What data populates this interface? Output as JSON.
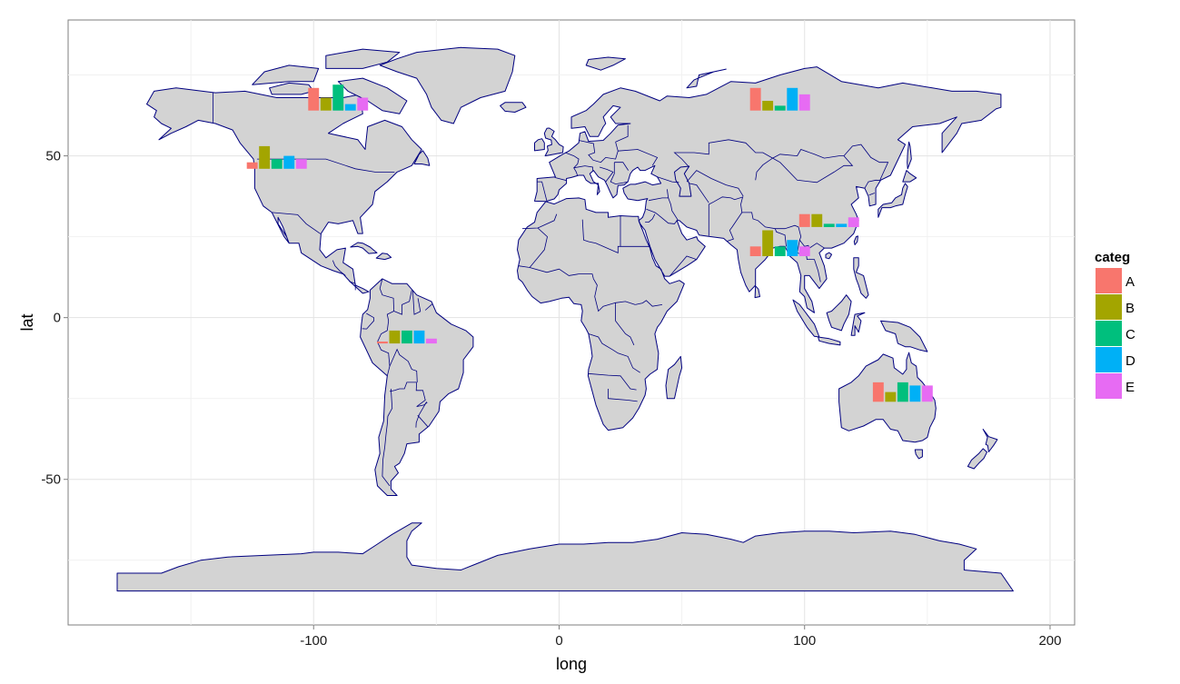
{
  "chart_data": {
    "type": "bar",
    "subtype": "map-with-inset-bars",
    "xlabel": "long",
    "ylabel": "lat",
    "xlim": [
      -200,
      210
    ],
    "ylim": [
      -95,
      92
    ],
    "x_ticks": [
      -100,
      0,
      100,
      200
    ],
    "y_ticks": [
      -50,
      0,
      50
    ],
    "x_tick_labels": [
      "-100",
      "0",
      "100",
      "200"
    ],
    "y_tick_labels": [
      "-50",
      "0",
      "50"
    ],
    "grid": true,
    "legend": {
      "title": "categ",
      "placement": "right",
      "entries": [
        {
          "name": "A",
          "color": "#F8766D"
        },
        {
          "name": "B",
          "color": "#A3A500"
        },
        {
          "name": "C",
          "color": "#00BF7D"
        },
        {
          "name": "D",
          "color": "#00B0F6"
        },
        {
          "name": "E",
          "color": "#E76BF3"
        }
      ]
    },
    "categories": [
      "A",
      "B",
      "C",
      "D",
      "E"
    ],
    "bar_scale_deg_per_unit": 1,
    "groups": [
      {
        "long": -90,
        "lat": 64,
        "values": [
          7,
          4,
          8,
          2,
          4
        ]
      },
      {
        "long": -115,
        "lat": 46,
        "values": [
          2,
          7,
          3,
          4,
          3
        ]
      },
      {
        "long": 90,
        "lat": 64,
        "values": [
          7,
          3,
          1.5,
          7,
          5
        ]
      },
      {
        "long": 110,
        "lat": 28,
        "values": [
          4,
          4,
          1,
          1,
          3
        ]
      },
      {
        "long": 90,
        "lat": 19,
        "values": [
          3,
          8,
          3,
          5,
          3
        ]
      },
      {
        "long": -62,
        "lat": -8,
        "values": [
          0.6,
          4,
          4,
          4,
          1.5
        ]
      },
      {
        "long": 140,
        "lat": -26,
        "values": [
          6,
          3,
          6,
          5,
          5
        ]
      }
    ]
  },
  "map": {
    "land_color": "#d3d3d3",
    "border_color": "#000080"
  }
}
